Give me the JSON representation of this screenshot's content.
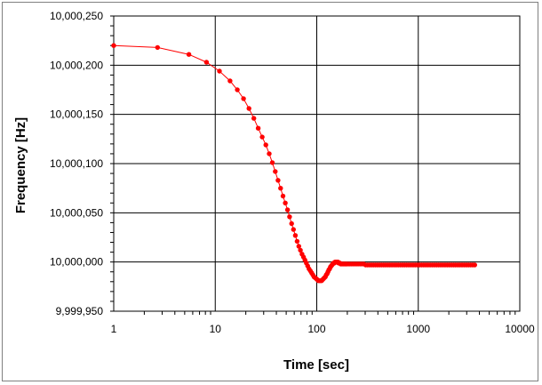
{
  "chart_data": {
    "type": "scatter",
    "title": "",
    "xlabel": "Time [sec]",
    "ylabel": "Frequency [Hz]",
    "x_scale": "log",
    "xlim": [
      1,
      10000
    ],
    "ylim": [
      9999950,
      10000250
    ],
    "x_ticks": [
      1,
      10,
      100,
      1000,
      10000
    ],
    "x_tick_labels": [
      "1",
      "10",
      "100",
      "1000",
      "10000"
    ],
    "y_ticks": [
      9999950,
      10000000,
      10000050,
      10000100,
      10000150,
      10000200,
      10000250
    ],
    "y_tick_labels": [
      "9,999,950",
      "10,000,000",
      "10,000,050",
      "10,000,100",
      "10,000,150",
      "10,000,200",
      "10,000,250"
    ],
    "grid": true,
    "legend": "none",
    "series": [
      {
        "color": "#ff0000",
        "marker": "circle",
        "line": true,
        "points": [
          [
            1.0,
            10000220
          ],
          [
            2.7,
            10000218
          ],
          [
            5.5,
            10000211
          ],
          [
            8.2,
            10000203
          ],
          [
            11,
            10000194
          ],
          [
            14,
            10000184
          ],
          [
            16.5,
            10000175
          ],
          [
            19,
            10000166
          ],
          [
            21.5,
            10000156
          ],
          [
            24,
            10000146
          ],
          [
            26.5,
            10000136
          ],
          [
            29,
            10000127
          ],
          [
            31.5,
            10000119
          ],
          [
            34,
            10000110
          ],
          [
            36.5,
            10000101
          ],
          [
            39,
            10000092
          ],
          [
            41.5,
            10000083
          ],
          [
            44,
            10000075
          ],
          [
            46.5,
            10000067
          ],
          [
            49,
            10000060
          ],
          [
            51.5,
            10000053
          ],
          [
            54,
            10000046
          ],
          [
            56.5,
            10000039
          ],
          [
            59,
            10000033
          ],
          [
            61.5,
            10000027
          ],
          [
            64,
            10000021
          ],
          [
            66.5,
            10000016
          ],
          [
            69,
            10000012
          ],
          [
            71.5,
            10000008
          ],
          [
            74,
            10000005
          ],
          [
            76.5,
            10000002
          ],
          [
            79,
            9999999
          ],
          [
            81.5,
            9999996
          ],
          [
            84,
            9999993
          ],
          [
            86.5,
            9999991
          ],
          [
            89,
            9999989
          ],
          [
            91.5,
            9999987
          ],
          [
            94,
            9999985
          ],
          [
            96.5,
            9999984
          ],
          [
            99,
            9999983
          ],
          [
            101.5,
            9999982
          ],
          [
            104,
            9999981
          ],
          [
            106.5,
            9999981
          ],
          [
            109,
            9999981
          ],
          [
            111.5,
            9999981
          ],
          [
            114,
            9999982
          ],
          [
            116.5,
            9999983
          ],
          [
            119,
            9999984
          ],
          [
            121.5,
            9999985
          ],
          [
            124,
            9999987
          ],
          [
            126.5,
            9999988
          ],
          [
            129,
            9999990
          ],
          [
            131.5,
            9999992
          ],
          [
            134,
            9999993
          ],
          [
            136.5,
            9999995
          ],
          [
            139,
            9999996
          ],
          [
            141.5,
            9999997
          ],
          [
            144,
            9999998
          ],
          [
            146.5,
            9999999
          ],
          [
            149,
            9999999
          ],
          [
            151.5,
            10000000
          ],
          [
            154,
            10000000
          ],
          [
            156.5,
            10000000
          ],
          [
            159,
            10000000
          ],
          [
            161.5,
            10000000
          ],
          [
            164,
            9999999
          ],
          [
            166.5,
            9999999
          ],
          [
            169,
            9999999
          ],
          [
            171.5,
            9999998
          ],
          [
            174,
            9999998
          ],
          [
            176.5,
            9999998
          ],
          [
            179,
            9999998
          ],
          [
            181.5,
            9999998
          ],
          [
            184,
            9999998
          ],
          [
            186.5,
            9999998
          ],
          [
            189,
            9999998
          ],
          [
            191.5,
            9999998
          ],
          [
            194,
            9999998
          ],
          [
            196.5,
            9999998
          ],
          [
            199,
            9999998
          ],
          [
            205,
            9999998
          ],
          [
            212,
            9999998
          ],
          [
            220,
            9999998
          ],
          [
            228,
            9999998
          ],
          [
            237,
            9999998
          ],
          [
            246,
            9999998
          ],
          [
            256,
            9999998
          ],
          [
            267,
            9999998
          ],
          [
            278,
            9999998
          ],
          [
            290,
            9999998
          ],
          [
            303,
            9999997
          ],
          [
            316,
            9999997
          ],
          [
            330,
            9999997
          ],
          [
            345,
            9999997
          ],
          [
            361,
            9999997
          ],
          [
            378,
            9999997
          ],
          [
            396,
            9999997
          ],
          [
            415,
            9999997
          ],
          [
            435,
            9999997
          ],
          [
            456,
            9999997
          ],
          [
            478,
            9999997
          ],
          [
            501,
            9999997
          ],
          [
            525,
            9999997
          ],
          [
            550,
            9999997
          ],
          [
            577,
            9999997
          ],
          [
            605,
            9999997
          ],
          [
            635,
            9999997
          ],
          [
            666,
            9999997
          ],
          [
            699,
            9999997
          ],
          [
            733,
            9999997
          ],
          [
            769,
            9999997
          ],
          [
            807,
            9999997
          ],
          [
            847,
            9999997
          ],
          [
            889,
            9999997
          ],
          [
            933,
            9999997
          ],
          [
            979,
            9999997
          ],
          [
            1027,
            9999997
          ],
          [
            1078,
            9999997
          ],
          [
            1131,
            9999997
          ],
          [
            1187,
            9999997
          ],
          [
            1246,
            9999997
          ],
          [
            1308,
            9999997
          ],
          [
            1373,
            9999997
          ],
          [
            1441,
            9999997
          ],
          [
            1512,
            9999997
          ],
          [
            1587,
            9999997
          ],
          [
            1666,
            9999997
          ],
          [
            1748,
            9999997
          ],
          [
            1835,
            9999997
          ],
          [
            1926,
            9999997
          ],
          [
            2021,
            9999997
          ],
          [
            2121,
            9999997
          ],
          [
            2226,
            9999997
          ],
          [
            2336,
            9999997
          ],
          [
            2452,
            9999997
          ],
          [
            2573,
            9999997
          ],
          [
            2700,
            9999997
          ],
          [
            2834,
            9999997
          ],
          [
            2974,
            9999997
          ],
          [
            3121,
            9999997
          ],
          [
            3275,
            9999997
          ],
          [
            3437,
            9999997
          ],
          [
            3600,
            9999997
          ]
        ]
      }
    ]
  }
}
